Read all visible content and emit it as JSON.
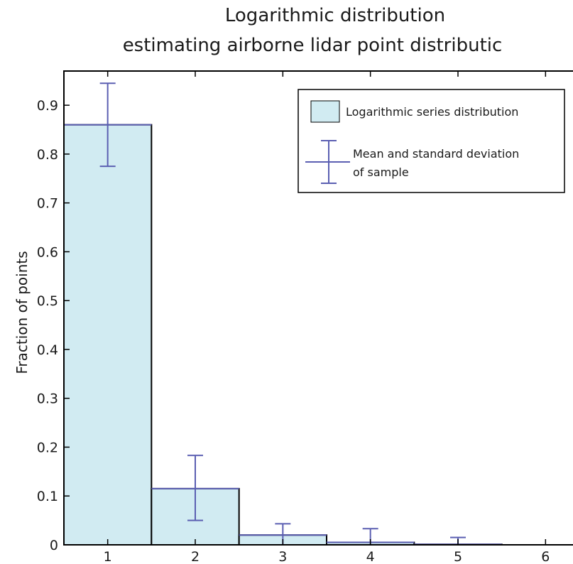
{
  "chart_data": {
    "type": "bar",
    "title": "Logarithmic distribution",
    "subtitle": "estimating airborne lidar point distributic",
    "ylabel": "Fraction of points",
    "xlabel": "",
    "categories": [
      "1",
      "2",
      "3",
      "4",
      "5",
      "6"
    ],
    "x_tick_labels": [
      "1",
      "2",
      "3",
      "4",
      "5",
      "6"
    ],
    "y_tick_labels": [
      "0",
      "0.1",
      "0.2",
      "0.3",
      "0.4",
      "0.5",
      "0.6",
      "0.7",
      "0.8",
      "0.9"
    ],
    "ylim": [
      0,
      0.97
    ],
    "grid": false,
    "legend_position": "top-right",
    "series": [
      {
        "name": "Logarithmic series distribution",
        "kind": "bar",
        "values": [
          0.86,
          0.115,
          0.02,
          0.005,
          0.001,
          0.0
        ],
        "color": "#d1ebf2"
      },
      {
        "name": "Mean and standard deviation of sample",
        "legend_lines": [
          "Mean and standard deviation",
          "of sample"
        ],
        "kind": "errorbar",
        "mean": [
          0.86,
          0.115,
          0.02,
          0.005,
          0.001,
          0.0
        ],
        "lower": [
          0.775,
          0.05,
          0.0,
          0.0,
          0.0,
          0.0
        ],
        "upper": [
          0.945,
          0.183,
          0.043,
          0.033,
          0.015,
          0.0
        ],
        "color": "#5b5fb2"
      }
    ]
  }
}
